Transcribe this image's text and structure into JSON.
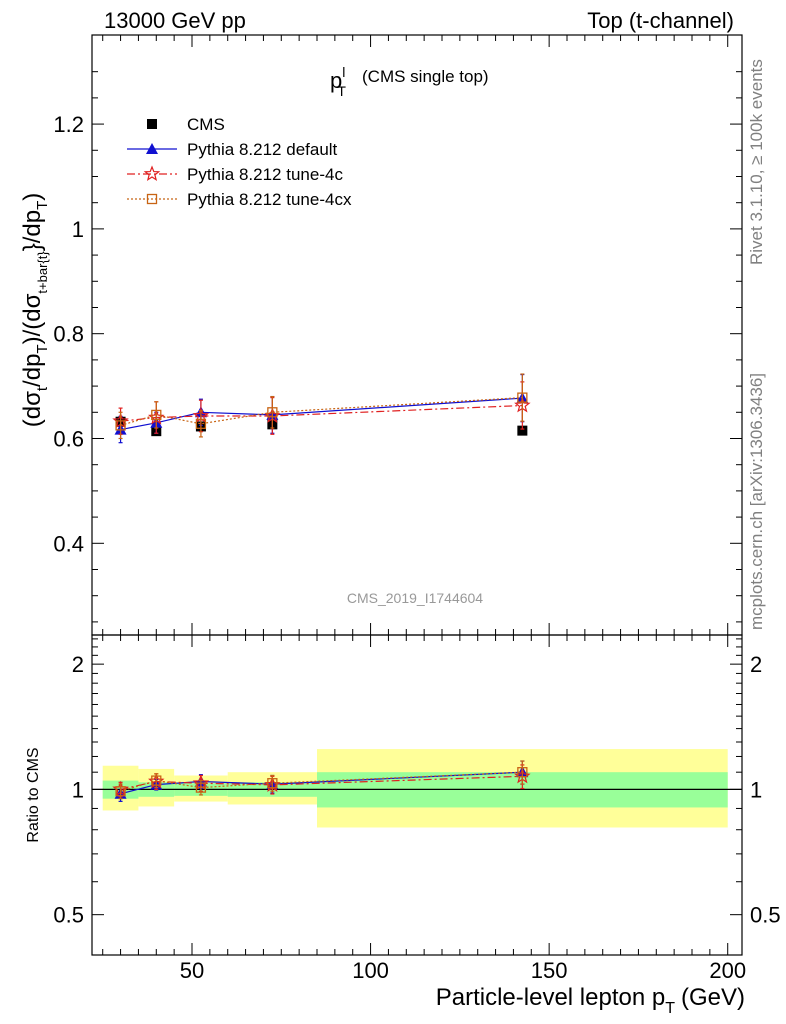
{
  "header": {
    "left_label": "13000 GeV pp",
    "right_label": "Top (t-channel)"
  },
  "side_labels": {
    "rivet": "Rivet 3.1.10, ≥ 100k events",
    "mcplots": "mcplots.cern.ch [arXiv:1306.3436]"
  },
  "chart_data": [
    {
      "panel": "main",
      "type": "scatter",
      "title_main": "p",
      "title_sup": "l",
      "title_sub": "T",
      "title_suffix": "(CMS single top)",
      "watermark": "CMS_2019_I1744604",
      "ylabel_text": "(dσ_t/dp_T)/(dσ_{t+bar{t}}/dp_T)",
      "xlim": [
        22,
        204
      ],
      "ylim": [
        0.225,
        1.37
      ],
      "yticks": [
        0.4,
        0.6,
        0.8,
        1,
        1.2
      ],
      "ytick_labels": [
        "0.4",
        "0.6",
        "0.8",
        "1",
        "1.2"
      ],
      "series": [
        {
          "name": "CMS",
          "color": "#000000",
          "marker": "square-filled",
          "x": [
            30,
            40,
            52.5,
            72.5,
            142.5
          ],
          "y": [
            0.632,
            0.614,
            0.623,
            0.627,
            0.615
          ],
          "yerr": [
            0.01,
            0.006,
            0.006,
            0.006,
            0.005
          ],
          "xerr": [
            [
              25,
              35
            ],
            [
              35,
              45
            ],
            [
              45,
              60
            ],
            [
              60,
              85
            ],
            [
              85,
              200
            ]
          ]
        },
        {
          "name": "Pythia 8.212 default",
          "color": "#1010d0",
          "marker": "triangle-filled",
          "line": "solid",
          "x": [
            30,
            40,
            52.5,
            72.5,
            142.5
          ],
          "y": [
            0.617,
            0.63,
            0.65,
            0.645,
            0.677
          ],
          "yerr": [
            0.025,
            0.02,
            0.025,
            0.035,
            0.045
          ]
        },
        {
          "name": "Pythia 8.212 tune-4c",
          "color": "#e02020",
          "marker": "star-open",
          "line": "dashdot",
          "x": [
            30,
            40,
            52.5,
            72.5,
            142.5
          ],
          "y": [
            0.633,
            0.64,
            0.643,
            0.643,
            0.663
          ],
          "yerr": [
            0.025,
            0.03,
            0.03,
            0.035,
            0.045
          ]
        },
        {
          "name": "Pythia 8.212 tune-4cx",
          "color": "#c86414",
          "marker": "square-open",
          "line": "dotted",
          "x": [
            30,
            40,
            52.5,
            72.5,
            142.5
          ],
          "y": [
            0.625,
            0.645,
            0.628,
            0.65,
            0.678
          ],
          "yerr": [
            0.025,
            0.025,
            0.025,
            0.03,
            0.045
          ]
        }
      ]
    },
    {
      "panel": "ratio",
      "type": "scatter",
      "ylabel": "Ratio to CMS",
      "xlabel_text": "Particle-level lepton p",
      "xlabel_sub": "T",
      "xlabel_unit": "(GeV)",
      "xlim": [
        22,
        204
      ],
      "ylim": [
        0.4,
        2.35
      ],
      "log_y": true,
      "yticks": [
        0.5,
        1,
        2
      ],
      "ytick_labels": [
        "0.5",
        "1",
        "2"
      ],
      "xticks": [
        50,
        100,
        150,
        200
      ],
      "xtick_labels": [
        "50",
        "100",
        "150",
        "200"
      ],
      "bands": [
        {
          "x0": 25,
          "x1": 35,
          "green": [
            0.95,
            1.05
          ],
          "yellow": [
            0.89,
            1.14
          ]
        },
        {
          "x0": 35,
          "x1": 45,
          "green": [
            0.96,
            1.04
          ],
          "yellow": [
            0.91,
            1.12
          ]
        },
        {
          "x0": 45,
          "x1": 60,
          "green": [
            0.965,
            1.035
          ],
          "yellow": [
            0.935,
            1.08
          ]
        },
        {
          "x0": 60,
          "x1": 85,
          "green": [
            0.96,
            1.04
          ],
          "yellow": [
            0.92,
            1.1
          ]
        },
        {
          "x0": 85,
          "x1": 200,
          "green": [
            0.905,
            1.1
          ],
          "yellow": [
            0.81,
            1.25
          ]
        }
      ],
      "series": [
        {
          "name": "Pythia 8.212 default",
          "color": "#1010d0",
          "marker": "triangle-filled",
          "line": "solid",
          "x": [
            30,
            40,
            52.5,
            72.5,
            142.5
          ],
          "y": [
            0.976,
            1.027,
            1.045,
            1.03,
            1.1
          ],
          "yerr": [
            0.04,
            0.03,
            0.04,
            0.05,
            0.07
          ]
        },
        {
          "name": "Pythia 8.212 tune-4c",
          "color": "#e02020",
          "marker": "star-open",
          "line": "dashdot",
          "x": [
            30,
            40,
            52.5,
            72.5,
            142.5
          ],
          "y": [
            1.0,
            1.045,
            1.035,
            1.025,
            1.075
          ],
          "yerr": [
            0.04,
            0.045,
            0.045,
            0.05,
            0.07
          ]
        },
        {
          "name": "Pythia 8.212 tune-4cx",
          "color": "#c86414",
          "marker": "square-open",
          "line": "dotted",
          "x": [
            30,
            40,
            52.5,
            72.5,
            142.5
          ],
          "y": [
            0.99,
            1.05,
            1.01,
            1.035,
            1.1
          ],
          "yerr": [
            0.04,
            0.04,
            0.04,
            0.045,
            0.07
          ]
        }
      ]
    }
  ]
}
